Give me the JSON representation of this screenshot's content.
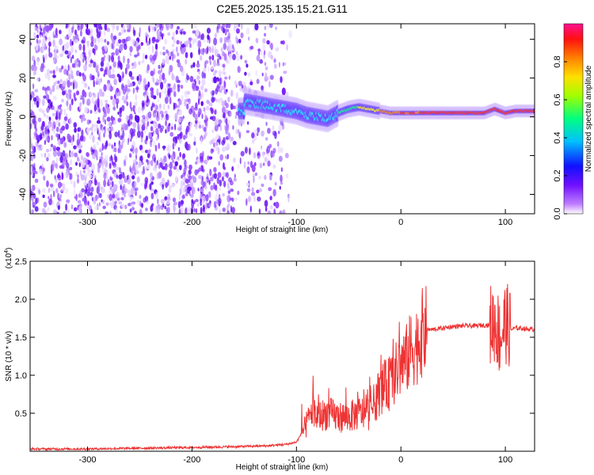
{
  "title": "C2E5.2025.135.15.21.G11",
  "chart_data": [
    {
      "type": "heatmap",
      "xlabel": "Height of straight line (km)",
      "ylabel": "Frequency (Hz)",
      "xlim": [
        -355,
        128
      ],
      "ylim": [
        -50,
        48
      ],
      "xticks": [
        -300,
        -200,
        -100,
        0,
        100
      ],
      "yticks": [
        -40,
        -20,
        0,
        20,
        40
      ],
      "x_tick_labels": [
        "-300",
        "-200",
        "-100",
        "0",
        "100"
      ],
      "y_tick_labels": [
        "-40",
        "-20",
        "0",
        "20",
        "40"
      ],
      "colorbar": {
        "label": "Normalized spectral amplitude",
        "range": [
          0,
          1
        ],
        "ticks": [
          0.0,
          0.2,
          0.4,
          0.6,
          0.8
        ],
        "tick_labels": [
          "0.0",
          "0.2",
          "0.4",
          "0.6",
          "0.8"
        ],
        "colormap": [
          "#ffffff",
          "#a040ff",
          "#5000ff",
          "#0000ff",
          "#00ffff",
          "#00ff00",
          "#ffff00",
          "#ff8000",
          "#ff0000",
          "#ff00a0"
        ]
      },
      "ridge": {
        "description_points_x": [
          -150,
          -130,
          -110,
          -100,
          -90,
          -80,
          -70,
          -60,
          -50,
          -40,
          -30,
          -20,
          -10,
          0,
          20,
          40,
          60,
          80,
          90,
          100,
          110,
          128
        ],
        "description_points_y": [
          8,
          6,
          4,
          3,
          1,
          0,
          -1,
          2,
          4,
          5,
          4,
          3,
          2,
          2,
          2,
          2,
          2,
          2,
          4,
          2,
          3,
          3
        ]
      }
    },
    {
      "type": "line",
      "xlabel": "Height of straight line (km)",
      "ylabel": "SNR (10 * v/v)",
      "y_multiplier": "(x10^4)",
      "xlim": [
        -355,
        128
      ],
      "ylim": [
        0,
        2.5
      ],
      "xticks": [
        -300,
        -200,
        -100,
        0,
        100
      ],
      "yticks": [
        0.5,
        1.0,
        1.5,
        2.0,
        2.5
      ],
      "x_tick_labels": [
        "-300",
        "-200",
        "-100",
        "0",
        "100"
      ],
      "y_tick_labels": [
        "0.5",
        "1.0",
        "1.5",
        "2.0",
        "2.5"
      ],
      "color": "#ee3333",
      "series": [
        {
          "x": [
            -355,
            -300,
            -250,
            -200,
            -160,
            -130,
            -110,
            -100,
            -90,
            -85,
            -80,
            -70,
            -60,
            -50,
            -40,
            -30,
            -20,
            -10,
            0,
            5,
            10,
            15,
            20,
            25,
            30,
            40,
            50,
            60,
            70,
            80,
            85,
            90,
            95,
            100,
            105,
            110,
            115,
            120,
            128
          ],
          "y": [
            0.03,
            0.03,
            0.04,
            0.05,
            0.06,
            0.07,
            0.09,
            0.12,
            0.35,
            0.55,
            0.45,
            0.5,
            0.45,
            0.45,
            0.5,
            0.5,
            0.8,
            0.9,
            1.15,
            1.2,
            1.35,
            1.4,
            1.55,
            1.6,
            1.6,
            1.62,
            1.64,
            1.65,
            1.65,
            1.66,
            1.66,
            1.7,
            1.5,
            1.7,
            1.6,
            1.62,
            1.62,
            1.61,
            1.6
          ]
        }
      ]
    }
  ]
}
